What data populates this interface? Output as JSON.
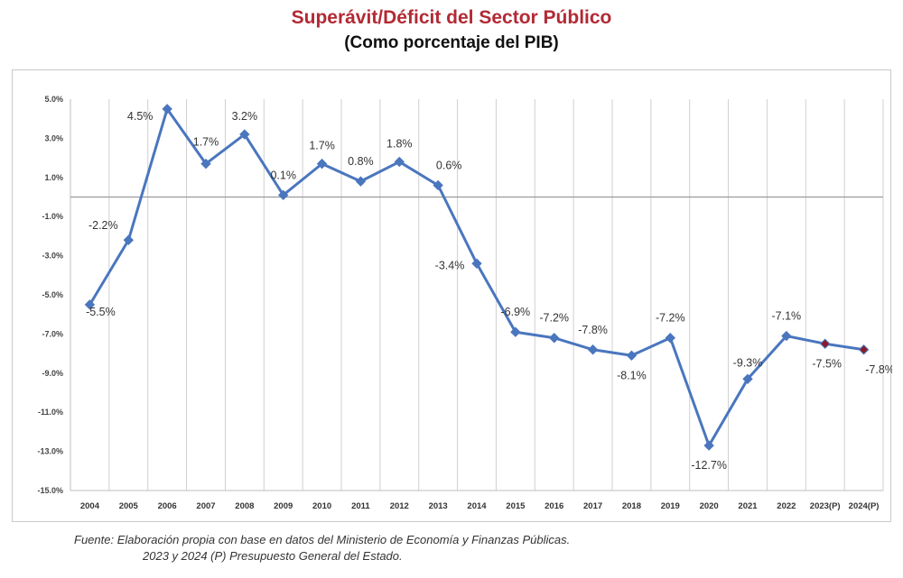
{
  "title": "Superávit/Déficit del Sector Público",
  "subtitle": "(Como porcentaje del PIB)",
  "source": {
    "line1": "Fuente: Elaboración propia con base en datos del Ministerio de Economía y Finanzas Públicas.",
    "line2": "2023 y 2024 (P) Presupuesto General del Estado."
  },
  "colors": {
    "title": "#b22a35",
    "line": "#4a76be",
    "marker": "#4a76be",
    "projected_marker": "#8b1a2b",
    "grid": "#d0d0d0",
    "zero_line": "#9a9a9a"
  },
  "chart_data": {
    "type": "line",
    "title": "Superávit/Déficit del Sector Público",
    "subtitle": "(Como porcentaje del PIB)",
    "xlabel": "",
    "ylabel": "",
    "categories": [
      "2004",
      "2005",
      "2006",
      "2007",
      "2008",
      "2009",
      "2010",
      "2011",
      "2012",
      "2013",
      "2014",
      "2015",
      "2016",
      "2017",
      "2018",
      "2019",
      "2020",
      "2021",
      "2022",
      "2023(P)",
      "2024(P)"
    ],
    "series": [
      {
        "values": [
          -5.5,
          -2.2,
          4.5,
          1.7,
          3.2,
          0.1,
          1.7,
          0.8,
          1.8,
          0.6,
          -3.4,
          -6.9,
          -7.2,
          -7.8,
          -8.1,
          -7.2,
          -12.7,
          -9.3,
          -7.1,
          -7.5,
          -7.8
        ],
        "data_labels": [
          "-5.5%",
          "-2.2%",
          "4.5%",
          "1.7%",
          "3.2%",
          "0.1%",
          "1.7%",
          "0.8%",
          "1.8%",
          "0.6%",
          "-3.4%",
          "-6.9%",
          "-7.2%",
          "-7.8%",
          "-8.1%",
          "-7.2%",
          "-12.7%",
          "-9.3%",
          "-7.1%",
          "-7.5%",
          "-7.8%"
        ]
      }
    ],
    "projected_categories": [
      "2023(P)",
      "2024(P)"
    ],
    "y_ticks": [
      "5.0%",
      "3.0%",
      "1.0%",
      "-1.0%",
      "-3.0%",
      "-5.0%",
      "-7.0%",
      "-9.0%",
      "-11.0%",
      "-13.0%",
      "-15.0%"
    ],
    "y_tick_values": [
      5,
      3,
      1,
      -1,
      -3,
      -5,
      -7,
      -9,
      -11,
      -13,
      -15
    ],
    "ylim": [
      -15,
      5
    ],
    "grid": "vertical",
    "legend": "none"
  }
}
